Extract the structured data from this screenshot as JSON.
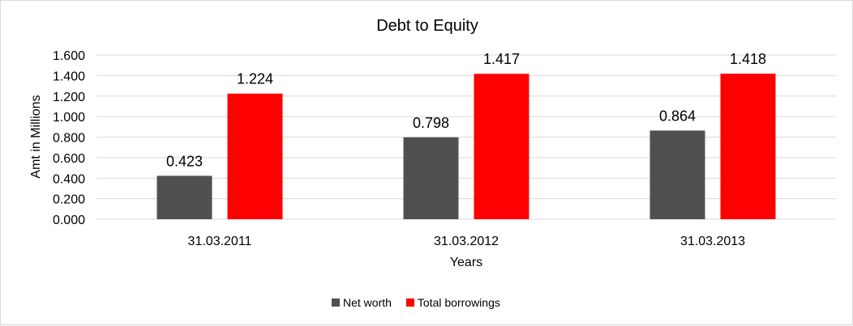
{
  "chart_data": {
    "type": "bar",
    "title": "Debt to Equity",
    "xlabel": "Years",
    "ylabel": "Amt in Millions",
    "categories": [
      "31.03.2011",
      "31.03.2012",
      "31.03.2013"
    ],
    "series": [
      {
        "name": "Net worth",
        "values": [
          0.423,
          0.798,
          0.864
        ],
        "labels": [
          "0.423",
          "0.798",
          "0.864"
        ],
        "color": "#505050"
      },
      {
        "name": "Total borrowings",
        "values": [
          1.224,
          1.417,
          1.418
        ],
        "labels": [
          "1.224",
          "1.417",
          "1.418"
        ],
        "color": "#FF0000"
      }
    ],
    "ylim": [
      0,
      1.6
    ],
    "yticks": [
      "0.000",
      "0.200",
      "0.400",
      "0.600",
      "0.800",
      "1.000",
      "1.200",
      "1.400",
      "1.600"
    ],
    "grid": true,
    "legend": "bottom"
  }
}
